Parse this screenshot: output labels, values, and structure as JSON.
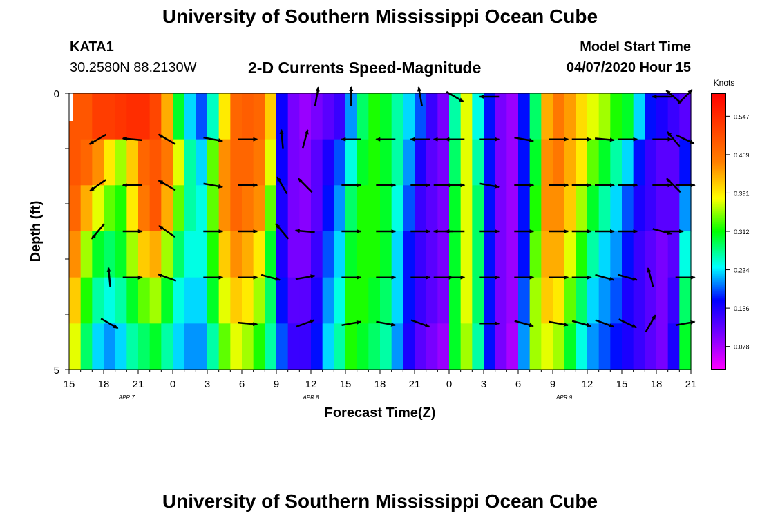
{
  "page": {
    "title_top": "University of Southern Mississippi Ocean Cube",
    "title_bottom": "University of Southern Mississippi Ocean Cube",
    "station": "KATA1",
    "location": "30.2580N 88.2130W",
    "plot_title": "2-D Currents Speed-Magnitude",
    "model_label": "Model Start Time",
    "model_time": "04/07/2020 Hour 15",
    "colors": {
      "background": "#ffffff",
      "text": "#000000",
      "arrow": "#000000"
    }
  },
  "chart_data": {
    "type": "heatmap",
    "title": "2-D Currents Speed-Magnitude",
    "xlabel": "Forecast Time(Z)",
    "ylabel": "Depth (ft)",
    "x_ticks": [
      "15",
      "18",
      "21",
      "0",
      "3",
      "6",
      "9",
      "12",
      "15",
      "18",
      "21",
      "0",
      "3",
      "6",
      "9",
      "12",
      "15",
      "18",
      "21"
    ],
    "date_labels": [
      {
        "label": "APR 7",
        "hour_index": 5
      },
      {
        "label": "APR 8",
        "hour_index": 21
      },
      {
        "label": "APR 9",
        "hour_index": 43
      }
    ],
    "y_ticks": [
      "0",
      "5"
    ],
    "depth_range_ft": [
      0,
      5
    ],
    "forecast_hours": 54,
    "colorbar": {
      "unit": "Knots",
      "ticks": [
        "0.547",
        "0.469",
        "0.391",
        "0.312",
        "0.234",
        "0.156",
        "0.078"
      ],
      "min": 0.0,
      "max": 0.625
    },
    "speed_knots_by_layer": [
      [
        0.52,
        0.52,
        0.55,
        0.55,
        0.56,
        0.57,
        0.57,
        0.54,
        0.44,
        0.3,
        0.22,
        0.18,
        0.25,
        0.4,
        0.5,
        0.51,
        0.5,
        0.42,
        0.15,
        0.08,
        0.06,
        0.08,
        0.1,
        0.12,
        0.2,
        0.28,
        0.32,
        0.3,
        0.26,
        0.22,
        0.18,
        0.12,
        0.08,
        0.26,
        0.38,
        0.24,
        0.16,
        0.08,
        0.06,
        0.16,
        0.28,
        0.44,
        0.48,
        0.45,
        0.41,
        0.38,
        0.36,
        0.32,
        0.3,
        0.22,
        0.16,
        0.14,
        0.12,
        0.1
      ],
      [
        0.52,
        0.5,
        0.46,
        0.4,
        0.36,
        0.42,
        0.5,
        0.52,
        0.48,
        0.38,
        0.26,
        0.22,
        0.34,
        0.46,
        0.5,
        0.5,
        0.48,
        0.38,
        0.15,
        0.08,
        0.07,
        0.1,
        0.14,
        0.18,
        0.24,
        0.3,
        0.32,
        0.3,
        0.26,
        0.2,
        0.14,
        0.1,
        0.08,
        0.28,
        0.38,
        0.26,
        0.16,
        0.08,
        0.06,
        0.16,
        0.3,
        0.46,
        0.48,
        0.44,
        0.4,
        0.34,
        0.3,
        0.26,
        0.22,
        0.16,
        0.12,
        0.1,
        0.1,
        0.16
      ],
      [
        0.5,
        0.44,
        0.38,
        0.34,
        0.32,
        0.4,
        0.48,
        0.52,
        0.44,
        0.34,
        0.26,
        0.24,
        0.34,
        0.46,
        0.5,
        0.48,
        0.46,
        0.34,
        0.14,
        0.08,
        0.07,
        0.1,
        0.16,
        0.2,
        0.28,
        0.32,
        0.32,
        0.3,
        0.24,
        0.18,
        0.12,
        0.1,
        0.08,
        0.3,
        0.38,
        0.28,
        0.16,
        0.08,
        0.06,
        0.16,
        0.32,
        0.46,
        0.46,
        0.42,
        0.36,
        0.3,
        0.26,
        0.22,
        0.18,
        0.14,
        0.12,
        0.1,
        0.1,
        0.2
      ],
      [
        0.46,
        0.36,
        0.3,
        0.28,
        0.3,
        0.36,
        0.42,
        0.44,
        0.36,
        0.28,
        0.24,
        0.24,
        0.32,
        0.42,
        0.46,
        0.44,
        0.4,
        0.3,
        0.14,
        0.08,
        0.08,
        0.12,
        0.18,
        0.22,
        0.3,
        0.32,
        0.32,
        0.3,
        0.22,
        0.16,
        0.12,
        0.1,
        0.08,
        0.3,
        0.38,
        0.28,
        0.16,
        0.08,
        0.06,
        0.16,
        0.34,
        0.44,
        0.44,
        0.38,
        0.32,
        0.26,
        0.22,
        0.2,
        0.16,
        0.12,
        0.1,
        0.08,
        0.1,
        0.24
      ],
      [
        0.42,
        0.32,
        0.26,
        0.24,
        0.26,
        0.3,
        0.34,
        0.36,
        0.3,
        0.24,
        0.22,
        0.22,
        0.3,
        0.38,
        0.42,
        0.4,
        0.36,
        0.28,
        0.16,
        0.1,
        0.1,
        0.14,
        0.2,
        0.24,
        0.32,
        0.32,
        0.3,
        0.28,
        0.22,
        0.16,
        0.12,
        0.1,
        0.08,
        0.3,
        0.38,
        0.28,
        0.16,
        0.08,
        0.06,
        0.18,
        0.36,
        0.42,
        0.4,
        0.34,
        0.28,
        0.22,
        0.2,
        0.18,
        0.14,
        0.12,
        0.1,
        0.08,
        0.12,
        0.28
      ],
      [
        0.38,
        0.28,
        0.22,
        0.2,
        0.22,
        0.26,
        0.28,
        0.3,
        0.26,
        0.22,
        0.2,
        0.2,
        0.26,
        0.34,
        0.38,
        0.36,
        0.32,
        0.26,
        0.18,
        0.12,
        0.12,
        0.16,
        0.22,
        0.26,
        0.32,
        0.3,
        0.28,
        0.26,
        0.2,
        0.14,
        0.1,
        0.08,
        0.06,
        0.3,
        0.36,
        0.26,
        0.16,
        0.08,
        0.05,
        0.2,
        0.36,
        0.38,
        0.36,
        0.3,
        0.24,
        0.2,
        0.18,
        0.16,
        0.14,
        0.12,
        0.1,
        0.08,
        0.14,
        0.3
      ]
    ],
    "vectors_direction_deg": [
      {
        "depth_index": 0,
        "hour_index": 21,
        "dir": 80
      },
      {
        "depth_index": 0,
        "hour_index": 24,
        "dir": 90
      },
      {
        "depth_index": 0,
        "hour_index": 30,
        "dir": 100
      },
      {
        "depth_index": 0,
        "hour_index": 33,
        "dir": -30
      },
      {
        "depth_index": 0,
        "hour_index": 36,
        "dir": 180
      },
      {
        "depth_index": 0,
        "hour_index": 51,
        "dir": 180
      },
      {
        "depth_index": 0,
        "hour_index": 52,
        "dir": 140
      },
      {
        "depth_index": 0,
        "hour_index": 53,
        "dir": 45
      },
      {
        "depth_index": 1,
        "hour_index": 2,
        "dir": -150
      },
      {
        "depth_index": 1,
        "hour_index": 5,
        "dir": 175
      },
      {
        "depth_index": 1,
        "hour_index": 8,
        "dir": 150
      },
      {
        "depth_index": 1,
        "hour_index": 12,
        "dir": -10
      },
      {
        "depth_index": 1,
        "hour_index": 15,
        "dir": 0
      },
      {
        "depth_index": 1,
        "hour_index": 18,
        "dir": 95
      },
      {
        "depth_index": 1,
        "hour_index": 20,
        "dir": 75
      },
      {
        "depth_index": 1,
        "hour_index": 24,
        "dir": 180
      },
      {
        "depth_index": 1,
        "hour_index": 27,
        "dir": 180
      },
      {
        "depth_index": 1,
        "hour_index": 30,
        "dir": 180
      },
      {
        "depth_index": 1,
        "hour_index": 32,
        "dir": 180
      },
      {
        "depth_index": 1,
        "hour_index": 33,
        "dir": 180
      },
      {
        "depth_index": 1,
        "hour_index": 36,
        "dir": 0
      },
      {
        "depth_index": 1,
        "hour_index": 39,
        "dir": -10
      },
      {
        "depth_index": 1,
        "hour_index": 42,
        "dir": 0
      },
      {
        "depth_index": 1,
        "hour_index": 44,
        "dir": 0
      },
      {
        "depth_index": 1,
        "hour_index": 46,
        "dir": -5
      },
      {
        "depth_index": 1,
        "hour_index": 48,
        "dir": 0
      },
      {
        "depth_index": 1,
        "hour_index": 51,
        "dir": 0
      },
      {
        "depth_index": 1,
        "hour_index": 52,
        "dir": 130
      },
      {
        "depth_index": 1,
        "hour_index": 53,
        "dir": -25
      },
      {
        "depth_index": 2,
        "hour_index": 2,
        "dir": -145
      },
      {
        "depth_index": 2,
        "hour_index": 5,
        "dir": 180
      },
      {
        "depth_index": 2,
        "hour_index": 8,
        "dir": 150
      },
      {
        "depth_index": 2,
        "hour_index": 12,
        "dir": -10
      },
      {
        "depth_index": 2,
        "hour_index": 15,
        "dir": 0
      },
      {
        "depth_index": 2,
        "hour_index": 18,
        "dir": 120
      },
      {
        "depth_index": 2,
        "hour_index": 20,
        "dir": 135
      },
      {
        "depth_index": 2,
        "hour_index": 24,
        "dir": 0
      },
      {
        "depth_index": 2,
        "hour_index": 27,
        "dir": 0
      },
      {
        "depth_index": 2,
        "hour_index": 30,
        "dir": 0
      },
      {
        "depth_index": 2,
        "hour_index": 32,
        "dir": 0
      },
      {
        "depth_index": 2,
        "hour_index": 33,
        "dir": 0
      },
      {
        "depth_index": 2,
        "hour_index": 36,
        "dir": -10
      },
      {
        "depth_index": 2,
        "hour_index": 39,
        "dir": 0
      },
      {
        "depth_index": 2,
        "hour_index": 42,
        "dir": 0
      },
      {
        "depth_index": 2,
        "hour_index": 44,
        "dir": 0
      },
      {
        "depth_index": 2,
        "hour_index": 46,
        "dir": 0
      },
      {
        "depth_index": 2,
        "hour_index": 48,
        "dir": 0
      },
      {
        "depth_index": 2,
        "hour_index": 51,
        "dir": 0
      },
      {
        "depth_index": 2,
        "hour_index": 52,
        "dir": 135
      },
      {
        "depth_index": 2,
        "hour_index": 53,
        "dir": 0
      },
      {
        "depth_index": 3,
        "hour_index": 2,
        "dir": -130
      },
      {
        "depth_index": 3,
        "hour_index": 5,
        "dir": 0
      },
      {
        "depth_index": 3,
        "hour_index": 8,
        "dir": 145
      },
      {
        "depth_index": 3,
        "hour_index": 12,
        "dir": 0
      },
      {
        "depth_index": 3,
        "hour_index": 15,
        "dir": 0
      },
      {
        "depth_index": 3,
        "hour_index": 18,
        "dir": 130
      },
      {
        "depth_index": 3,
        "hour_index": 20,
        "dir": 175
      },
      {
        "depth_index": 3,
        "hour_index": 24,
        "dir": 0
      },
      {
        "depth_index": 3,
        "hour_index": 27,
        "dir": 0
      },
      {
        "depth_index": 3,
        "hour_index": 30,
        "dir": 0
      },
      {
        "depth_index": 3,
        "hour_index": 32,
        "dir": 180
      },
      {
        "depth_index": 3,
        "hour_index": 33,
        "dir": 180
      },
      {
        "depth_index": 3,
        "hour_index": 36,
        "dir": 0
      },
      {
        "depth_index": 3,
        "hour_index": 39,
        "dir": 0
      },
      {
        "depth_index": 3,
        "hour_index": 42,
        "dir": 0
      },
      {
        "depth_index": 3,
        "hour_index": 44,
        "dir": 0
      },
      {
        "depth_index": 3,
        "hour_index": 46,
        "dir": 0
      },
      {
        "depth_index": 3,
        "hour_index": 48,
        "dir": 0
      },
      {
        "depth_index": 3,
        "hour_index": 51,
        "dir": -15
      },
      {
        "depth_index": 3,
        "hour_index": 52,
        "dir": 0
      },
      {
        "depth_index": 4,
        "hour_index": 3,
        "dir": 95
      },
      {
        "depth_index": 4,
        "hour_index": 5,
        "dir": 0
      },
      {
        "depth_index": 4,
        "hour_index": 8,
        "dir": 160
      },
      {
        "depth_index": 4,
        "hour_index": 12,
        "dir": 0
      },
      {
        "depth_index": 4,
        "hour_index": 15,
        "dir": 0
      },
      {
        "depth_index": 4,
        "hour_index": 17,
        "dir": -15
      },
      {
        "depth_index": 4,
        "hour_index": 20,
        "dir": 10
      },
      {
        "depth_index": 4,
        "hour_index": 24,
        "dir": 0
      },
      {
        "depth_index": 4,
        "hour_index": 27,
        "dir": 0
      },
      {
        "depth_index": 4,
        "hour_index": 30,
        "dir": 0
      },
      {
        "depth_index": 4,
        "hour_index": 32,
        "dir": 0
      },
      {
        "depth_index": 4,
        "hour_index": 33,
        "dir": 0
      },
      {
        "depth_index": 4,
        "hour_index": 36,
        "dir": 0
      },
      {
        "depth_index": 4,
        "hour_index": 39,
        "dir": 0
      },
      {
        "depth_index": 4,
        "hour_index": 42,
        "dir": 0
      },
      {
        "depth_index": 4,
        "hour_index": 44,
        "dir": 0
      },
      {
        "depth_index": 4,
        "hour_index": 46,
        "dir": -15
      },
      {
        "depth_index": 4,
        "hour_index": 48,
        "dir": -15
      },
      {
        "depth_index": 4,
        "hour_index": 50,
        "dir": 105
      },
      {
        "depth_index": 4,
        "hour_index": 53,
        "dir": 0
      },
      {
        "depth_index": 5,
        "hour_index": 3,
        "dir": -30
      },
      {
        "depth_index": 5,
        "hour_index": 15,
        "dir": -5
      },
      {
        "depth_index": 5,
        "hour_index": 20,
        "dir": 20
      },
      {
        "depth_index": 5,
        "hour_index": 24,
        "dir": 10
      },
      {
        "depth_index": 5,
        "hour_index": 27,
        "dir": -10
      },
      {
        "depth_index": 5,
        "hour_index": 30,
        "dir": -20
      },
      {
        "depth_index": 5,
        "hour_index": 36,
        "dir": 0
      },
      {
        "depth_index": 5,
        "hour_index": 39,
        "dir": -15
      },
      {
        "depth_index": 5,
        "hour_index": 42,
        "dir": -10
      },
      {
        "depth_index": 5,
        "hour_index": 44,
        "dir": -15
      },
      {
        "depth_index": 5,
        "hour_index": 46,
        "dir": -20
      },
      {
        "depth_index": 5,
        "hour_index": 48,
        "dir": -25
      },
      {
        "depth_index": 5,
        "hour_index": 50,
        "dir": 60
      },
      {
        "depth_index": 5,
        "hour_index": 53,
        "dir": 10
      }
    ]
  }
}
